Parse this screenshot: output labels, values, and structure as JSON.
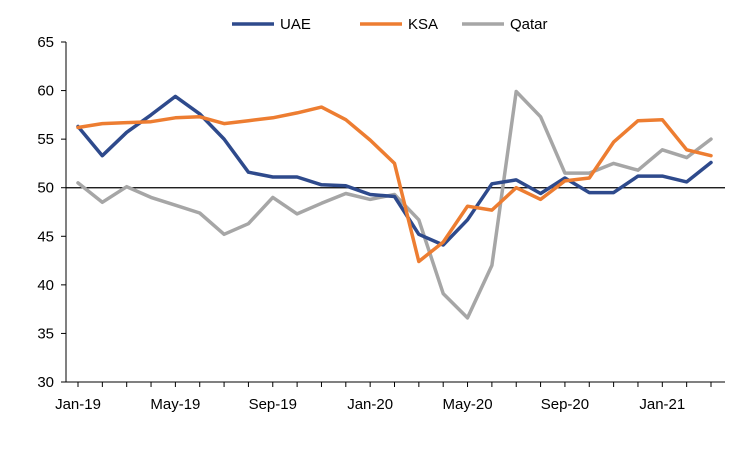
{
  "chart_data": {
    "type": "line",
    "title": "",
    "xlabel": "",
    "ylabel": "",
    "ylim": [
      30,
      65
    ],
    "yticks": [
      30,
      35,
      40,
      45,
      50,
      55,
      60,
      65
    ],
    "reference_line": 50,
    "x": [
      "Jan-19",
      "Feb-19",
      "Mar-19",
      "Apr-19",
      "May-19",
      "Jun-19",
      "Jul-19",
      "Aug-19",
      "Sep-19",
      "Oct-19",
      "Nov-19",
      "Dec-19",
      "Jan-20",
      "Feb-20",
      "Mar-20",
      "Apr-20",
      "May-20",
      "Jun-20",
      "Jul-20",
      "Aug-20",
      "Sep-20",
      "Oct-20",
      "Nov-20",
      "Dec-20",
      "Jan-21",
      "Feb-21",
      "Mar-21"
    ],
    "xtick_labels": [
      "Jan-19",
      "May-19",
      "Sep-19",
      "Jan-20",
      "May-20",
      "Sep-20",
      "Jan-21"
    ],
    "legend_position": "top",
    "series": [
      {
        "name": "UAE",
        "color": "#2E4A8C",
        "values": [
          56.3,
          53.3,
          55.7,
          57.5,
          59.4,
          57.6,
          55.0,
          51.6,
          51.1,
          51.1,
          50.3,
          50.2,
          49.3,
          49.1,
          45.2,
          44.1,
          46.7,
          50.4,
          50.8,
          49.4,
          51.0,
          49.5,
          49.5,
          51.2,
          51.2,
          50.6,
          52.6
        ]
      },
      {
        "name": "KSA",
        "color": "#ED7D31",
        "values": [
          56.2,
          56.6,
          56.7,
          56.8,
          57.2,
          57.3,
          56.6,
          56.9,
          57.2,
          57.7,
          58.3,
          57.0,
          54.9,
          52.5,
          42.4,
          44.4,
          48.1,
          47.7,
          50.0,
          48.8,
          50.7,
          51.0,
          54.7,
          56.9,
          57.0,
          53.9,
          53.3
        ]
      },
      {
        "name": "Qatar",
        "color": "#A6A6A6",
        "values": [
          50.5,
          48.5,
          50.1,
          49.0,
          48.2,
          47.4,
          45.2,
          46.3,
          49.0,
          47.3,
          48.4,
          49.4,
          48.8,
          49.3,
          46.7,
          39.1,
          36.6,
          42.0,
          59.9,
          57.3,
          51.5,
          51.5,
          52.5,
          51.8,
          53.9,
          53.1,
          55.0
        ]
      }
    ]
  }
}
